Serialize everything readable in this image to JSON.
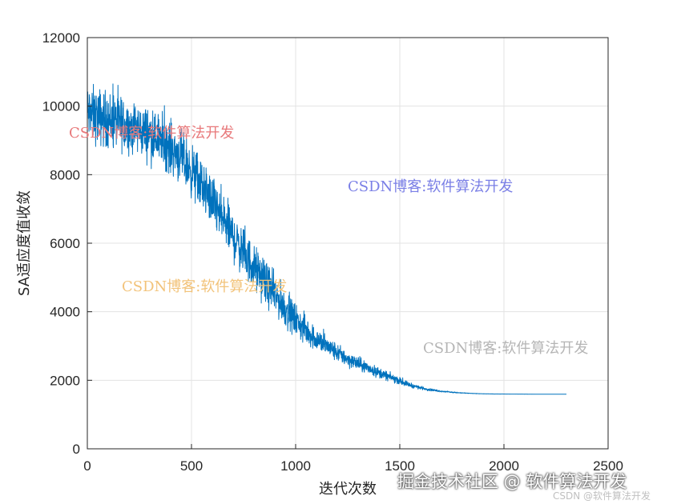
{
  "chart_data": {
    "type": "line",
    "xlabel": "迭代次数",
    "ylabel": "SA适应度值收敛",
    "xlim": [
      0,
      2500
    ],
    "ylim": [
      0,
      12000
    ],
    "xticks": [
      "0",
      "500",
      "1000",
      "1500",
      "2000",
      "2500"
    ],
    "yticks": [
      "0",
      "2000",
      "4000",
      "6000",
      "8000",
      "10000",
      "12000"
    ],
    "grid": true,
    "legend": "none",
    "series_color": "#0072BD",
    "x": [
      0,
      50,
      100,
      150,
      200,
      250,
      300,
      350,
      400,
      450,
      500,
      550,
      600,
      650,
      700,
      750,
      800,
      850,
      900,
      950,
      1000,
      1050,
      1100,
      1150,
      1200,
      1250,
      1300,
      1350,
      1400,
      1450,
      1500,
      1550,
      1600,
      1650,
      1700,
      1750,
      1800,
      1850,
      1900,
      1950,
      2000,
      2050,
      2100,
      2150,
      2200,
      2250,
      2300
    ],
    "y": [
      9800,
      9700,
      9600,
      9500,
      9400,
      9300,
      9200,
      9000,
      8800,
      8500,
      8100,
      7700,
      7200,
      6700,
      6200,
      5700,
      5300,
      4900,
      4500,
      4100,
      3750,
      3450,
      3200,
      3000,
      2800,
      2620,
      2480,
      2350,
      2220,
      2100,
      1980,
      1860,
      1780,
      1720,
      1680,
      1650,
      1630,
      1615,
      1605,
      1600,
      1598,
      1596,
      1595,
      1594,
      1594,
      1593,
      1593
    ],
    "noise_amplitude": [
      1200,
      1200,
      1200,
      1200,
      1150,
      1100,
      1100,
      1100,
      1100,
      1100,
      1100,
      1100,
      1100,
      1100,
      1050,
      1000,
      950,
      900,
      850,
      800,
      700,
      600,
      500,
      430,
      380,
      340,
      300,
      260,
      220,
      180,
      140,
      100,
      70,
      50,
      35,
      25,
      15,
      10,
      6,
      4,
      3,
      2,
      2,
      1,
      1,
      1,
      1
    ]
  },
  "watermarks": {
    "red": "CSDN博客:软件算法开发",
    "blue": "CSDN博客:软件算法开发",
    "orange": "CSDN博客:软件算法开发",
    "gray": "CSDN博客:软件算法开发",
    "footer_main": "掘金技术社区 @ 软件算法开发",
    "footer_small": "CSDN @软件算法开发"
  },
  "colors": {
    "red": "#E8797B",
    "blue": "#7A7FE6",
    "orange": "#F2C37A",
    "gray": "#B5B5B5"
  }
}
